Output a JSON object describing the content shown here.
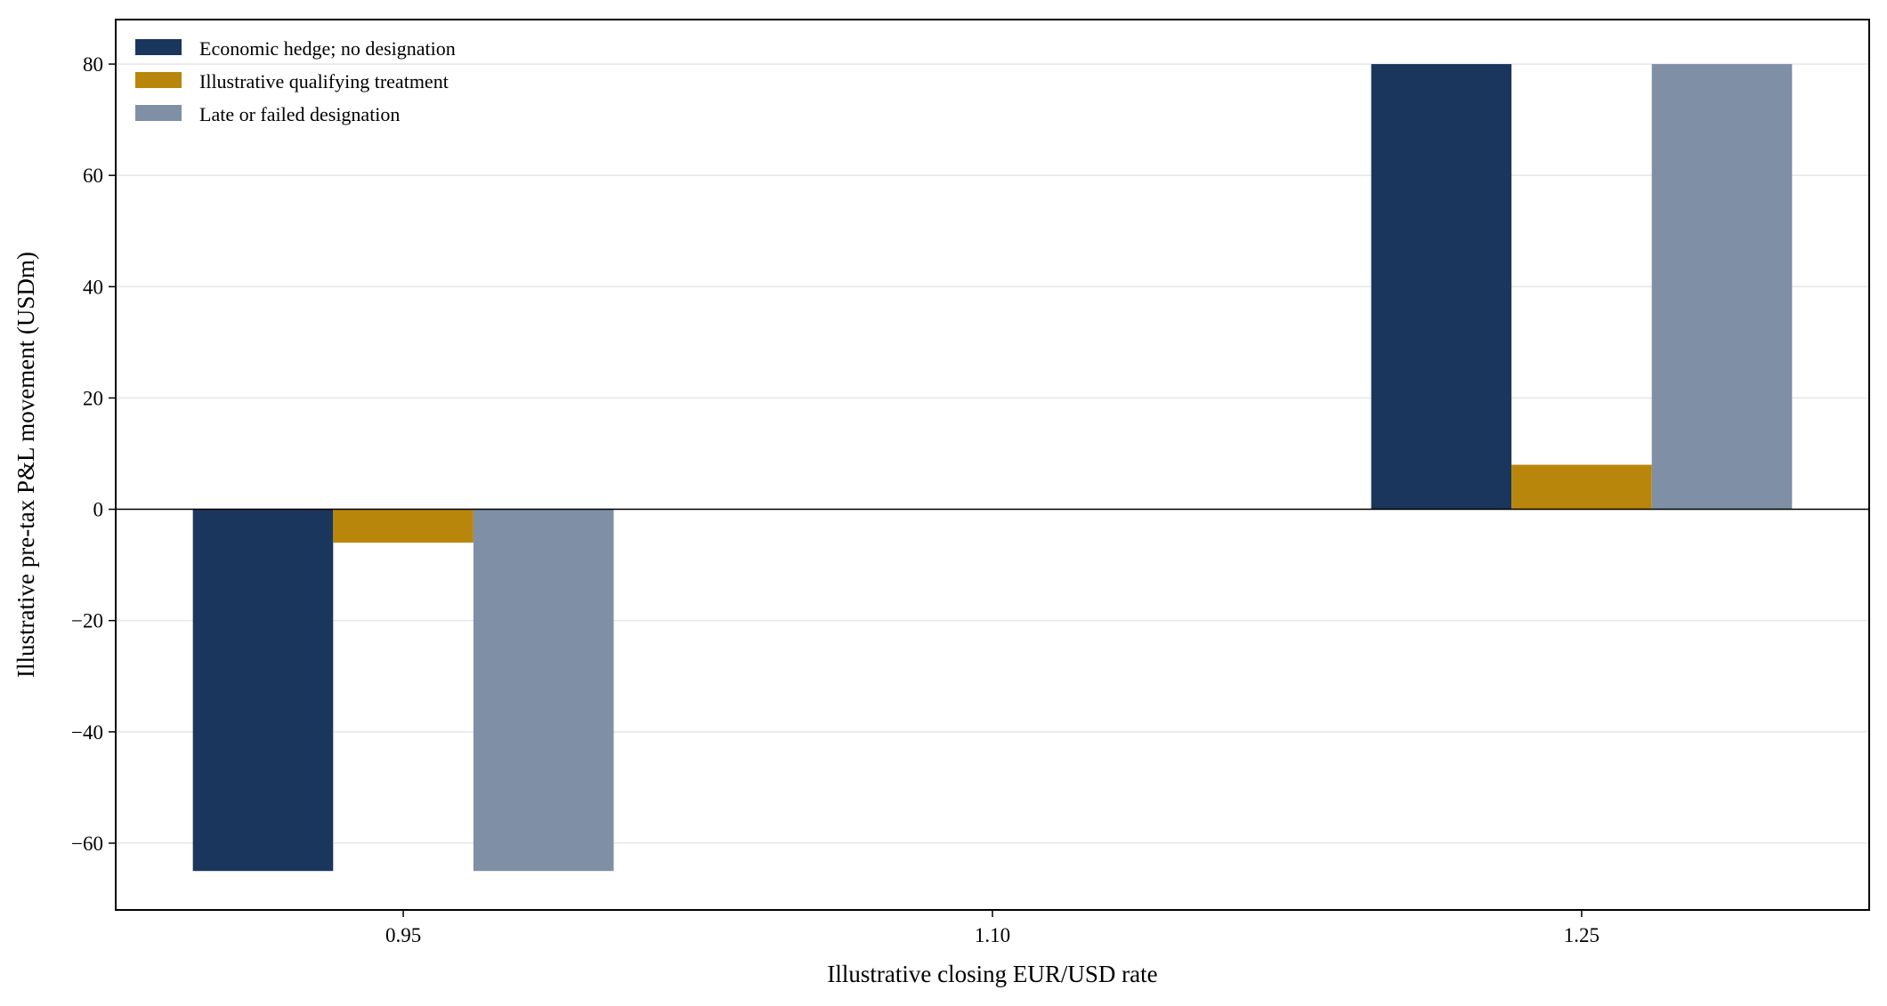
{
  "chart_data": {
    "type": "bar",
    "title": "",
    "xlabel": "Illustrative closing EUR/USD rate",
    "ylabel": "Illustrative pre-tax P&L movement (USDm)",
    "categories": [
      "0.95",
      "1.10",
      "1.25"
    ],
    "series": [
      {
        "name": "Economic hedge; no designation",
        "values": [
          -65,
          0,
          80
        ],
        "color": "#1a365d"
      },
      {
        "name": "Illustrative qualifying treatment",
        "values": [
          -6,
          0,
          8
        ],
        "color": "#b8860b"
      },
      {
        "name": "Late or failed designation",
        "values": [
          -65,
          0,
          80
        ],
        "color": "#7f8fa6"
      }
    ],
    "ylim": [
      -72,
      88
    ],
    "yticks": [
      -60,
      -40,
      -20,
      0,
      20,
      40,
      60,
      80
    ],
    "ytick_labels": [
      "−60",
      "−40",
      "−20",
      "0",
      "20",
      "40",
      "60",
      "80"
    ],
    "grid": "horizontal",
    "legend_position": "top-left",
    "zero_line": true
  }
}
